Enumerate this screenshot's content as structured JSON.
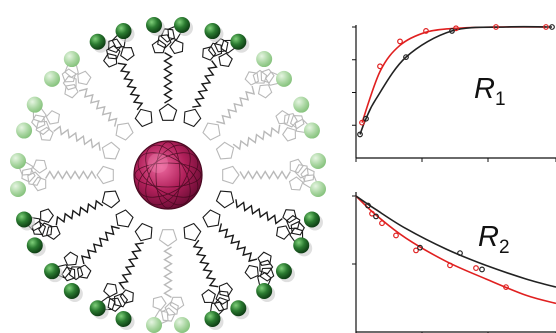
{
  "molecule": {
    "core_color": "#b0205a",
    "core_highlight": "#e0508a",
    "arm_color_dark": "#1a1a1a",
    "arm_color_light": "#b9b9b9",
    "sphere_color_dark": "#1f6a2a",
    "sphere_color_light": "#a8d4a0",
    "arm_count": 16
  },
  "chart_data": [
    {
      "type": "line",
      "panel_label": "R",
      "panel_subscript": "1",
      "series": [
        {
          "color": "#e02020",
          "x": [
            0.03,
            0.12,
            0.22,
            0.35,
            0.5,
            0.7,
            0.95
          ],
          "y": [
            0.27,
            0.66,
            0.86,
            0.96,
            0.99,
            1.0,
            1.0
          ]
        },
        {
          "color": "#222222",
          "x": [
            0.02,
            0.05,
            0.1,
            0.25,
            0.48,
            0.75,
            0.98
          ],
          "y": [
            0.18,
            0.3,
            0.45,
            0.77,
            0.97,
            1.0,
            1.0
          ]
        }
      ],
      "markers": [
        {
          "series": 0,
          "x": [
            0.03,
            0.12,
            0.22,
            0.35,
            0.5,
            0.7,
            0.95
          ],
          "y": [
            0.27,
            0.7,
            0.89,
            0.97,
            0.99,
            1.0,
            1.0
          ]
        },
        {
          "series": 1,
          "x": [
            0.02,
            0.05,
            0.25,
            0.48,
            0.98
          ],
          "y": [
            0.18,
            0.3,
            0.77,
            0.97,
            1.0
          ]
        }
      ],
      "grid": false
    },
    {
      "type": "line",
      "panel_label": "R",
      "panel_subscript": "2",
      "series": [
        {
          "color": "#e02020",
          "x": [
            0.0,
            0.1,
            0.25,
            0.45,
            0.65,
            0.85,
            1.0
          ],
          "y": [
            1.0,
            0.86,
            0.69,
            0.52,
            0.39,
            0.27,
            0.21
          ]
        },
        {
          "color": "#222222",
          "x": [
            0.0,
            0.1,
            0.25,
            0.45,
            0.65,
            0.85,
            1.0
          ],
          "y": [
            1.0,
            0.9,
            0.76,
            0.61,
            0.49,
            0.39,
            0.33
          ]
        }
      ],
      "markers": [
        {
          "series": 0,
          "x": [
            0.08,
            0.13,
            0.2,
            0.3,
            0.47,
            0.6,
            0.75
          ],
          "y": [
            0.87,
            0.8,
            0.71,
            0.6,
            0.49,
            0.47,
            0.33
          ]
        },
        {
          "series": 1,
          "x": [
            0.06,
            0.1,
            0.32,
            0.52,
            0.63
          ],
          "y": [
            0.93,
            0.85,
            0.62,
            0.58,
            0.46
          ]
        }
      ],
      "grid": false
    }
  ]
}
